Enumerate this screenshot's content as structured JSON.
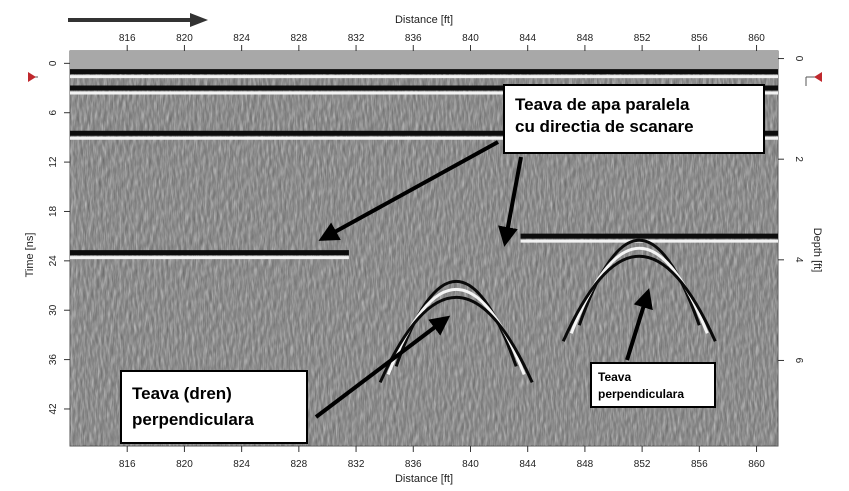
{
  "chart_data": {
    "type": "heatmap",
    "description_kind": "GPR radargram",
    "x_axis": {
      "label_top": "Distance [ft]",
      "label_bottom": "Distance [ft]",
      "range": [
        812.0,
        861.5
      ],
      "ticks": [
        816,
        820,
        824,
        828,
        832,
        836,
        840,
        844,
        848,
        852,
        856,
        860
      ]
    },
    "y_axis_left": {
      "label": "Time [ns]",
      "range": [
        -1.5,
        46.5
      ],
      "ticks": [
        0,
        6,
        12,
        18,
        24,
        30,
        36,
        42
      ]
    },
    "y_axis_right": {
      "label": "Depth [ft]",
      "range": [
        -0.15,
        7.7
      ],
      "ticks": [
        0,
        2,
        4,
        6
      ]
    },
    "colormap": "grayscale",
    "reflectors": [
      {
        "x_start": 812.0,
        "x_end": 861.5,
        "t": 1.0
      },
      {
        "x_start": 812.0,
        "x_end": 861.5,
        "t": 3.0
      },
      {
        "x_start": 812.0,
        "x_end": 861.5,
        "t": 8.5
      },
      {
        "x_start": 812.0,
        "x_end": 831.5,
        "t": 23.0
      },
      {
        "x_start": 843.5,
        "x_end": 861.5,
        "t": 21.0
      }
    ],
    "hyperbolas": [
      {
        "apex_x": 839.0,
        "apex_t": 26.5
      },
      {
        "apex_x": 851.8,
        "apex_t": 21.5
      }
    ],
    "annotations": [
      {
        "lines": [
          "Teava de apa paralela",
          "cu directia de scanare"
        ],
        "points_to": [
          [
            829.0,
            21.0
          ],
          [
            842.0,
            21.5
          ]
        ]
      },
      {
        "lines": [
          "Teava (dren)",
          "perpendiculara"
        ],
        "points_to": [
          [
            839.0,
            29.5
          ]
        ]
      },
      {
        "lines": [
          "Teava",
          "perpendiculara"
        ],
        "points_to": [
          [
            852.0,
            27.0
          ]
        ]
      }
    ]
  },
  "colors": {
    "arrow": "#000000",
    "direction_arrow": "#333333",
    "surface_marker": "#c0282d"
  },
  "direction_arrow_icon": "scan-direction-arrow-icon",
  "surface_marker_icon": "red-triangle-marker-icon"
}
